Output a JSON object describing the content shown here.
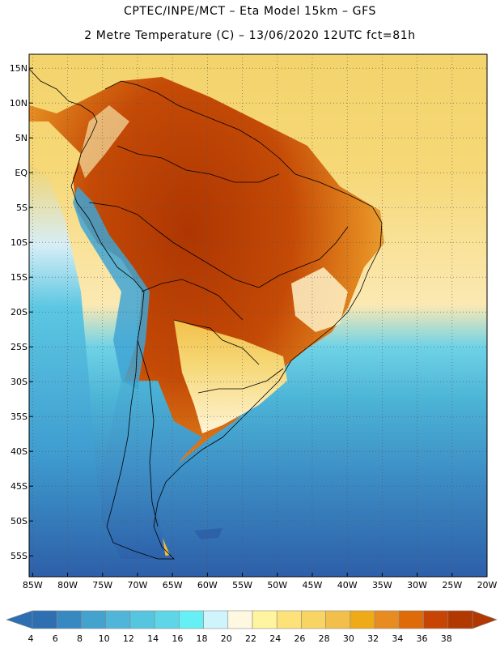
{
  "title": {
    "line1": "CPTEC/INPE/MCT –  Eta Model 15km – GFS",
    "line2": "2 Metre Temperature (C) – 13/06/2020 12UTC fct=81h"
  },
  "map": {
    "lat_labels": [
      "15N",
      "10N",
      "5N",
      "EQ",
      "5S",
      "10S",
      "15S",
      "20S",
      "25S",
      "30S",
      "35S",
      "40S",
      "45S",
      "50S",
      "55S"
    ],
    "lon_labels": [
      "85W",
      "80W",
      "75W",
      "70W",
      "65W",
      "60W",
      "55W",
      "50W",
      "45W",
      "40W",
      "35W",
      "30W",
      "25W",
      "20W"
    ],
    "lat_values": [
      15,
      10,
      5,
      0,
      -5,
      -10,
      -15,
      -20,
      -25,
      -30,
      -35,
      -40,
      -45,
      -50,
      -55
    ],
    "lon_values": [
      -85,
      -80,
      -75,
      -70,
      -65,
      -60,
      -55,
      -50,
      -45,
      -40,
      -35,
      -30,
      -25,
      -20
    ],
    "extent": {
      "lon_min": -85.5,
      "lon_max": -20,
      "lat_min": -58,
      "lat_max": 17
    }
  },
  "colorbar": {
    "values": [
      "4",
      "6",
      "8",
      "10",
      "12",
      "14",
      "16",
      "18",
      "20",
      "22",
      "24",
      "26",
      "28",
      "30",
      "32",
      "34",
      "36",
      "38"
    ],
    "colors": [
      "#2e6fb2",
      "#3889c2",
      "#44a2cf",
      "#4fb6da",
      "#56c6e0",
      "#5fd6e8",
      "#66f0f5",
      "#cff4fb",
      "#fff8e0",
      "#fff4a0",
      "#fde27a",
      "#f8d462",
      "#f2c04a",
      "#efaa18",
      "#e88b20",
      "#df6a0a",
      "#c84404",
      "#b23802"
    ]
  },
  "colors": {
    "ocean_cold": "#2e60a8",
    "ocean_mid": "#4cb4d6",
    "ocean_warm": "#f3d36b",
    "land_hot": "#b23a04",
    "land_warm": "#e3871f",
    "andes": "#3fa4d4"
  }
}
